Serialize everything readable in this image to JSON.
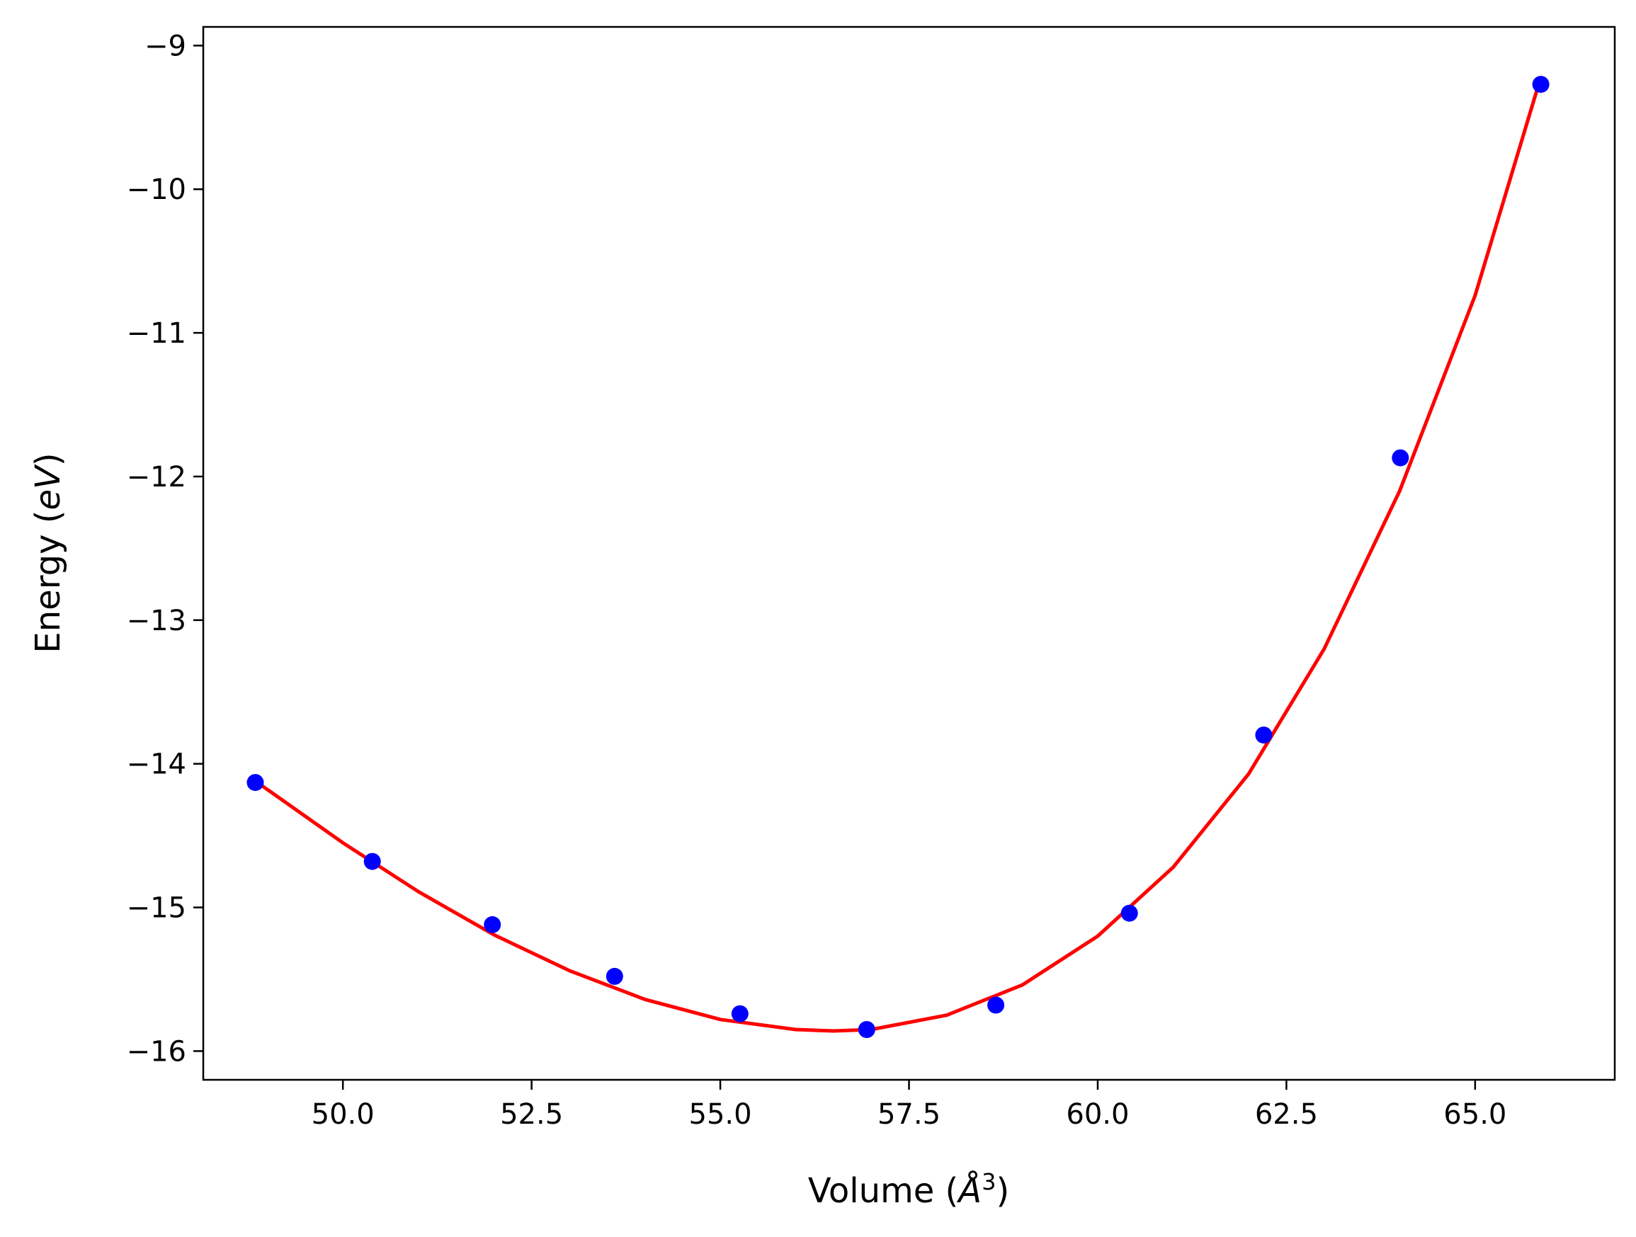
{
  "chart_data": {
    "type": "scatter",
    "xlabel": "Volume ($\\AA^3$)",
    "ylabel": "Energy ($eV$)",
    "xlim": [
      48.15,
      66.85
    ],
    "ylim": [
      -16.2,
      -8.87
    ],
    "xticks": [
      50.0,
      52.5,
      55.0,
      57.5,
      60.0,
      62.5,
      65.0
    ],
    "xtick_labels": [
      "50.0",
      "52.5",
      "55.0",
      "57.5",
      "60.0",
      "62.5",
      "65.0"
    ],
    "yticks": [
      -16,
      -15,
      -14,
      -13,
      -12,
      -11,
      -10,
      -9
    ],
    "ytick_labels": [
      "−16",
      "−15",
      "−14",
      "−13",
      "−12",
      "−11",
      "−10",
      "−9"
    ],
    "grid": false,
    "series": [
      {
        "kind": "points",
        "color": "#0000ff",
        "x": [
          48.84,
          50.39,
          51.98,
          53.6,
          55.26,
          56.94,
          58.65,
          60.42,
          62.2,
          64.01,
          65.87
        ],
        "y": [
          -14.13,
          -14.68,
          -15.12,
          -15.48,
          -15.74,
          -15.85,
          -15.68,
          -15.04,
          -13.8,
          -11.87,
          -9.27
        ]
      },
      {
        "kind": "fit-line",
        "color": "#ff0000",
        "x": [
          48.84,
          50.0,
          51.0,
          52.0,
          53.0,
          54.0,
          55.0,
          56.0,
          56.5,
          57.0,
          58.0,
          59.0,
          60.0,
          61.0,
          62.0,
          63.0,
          64.0,
          65.0,
          65.87
        ],
        "y": [
          -14.12,
          -14.55,
          -14.89,
          -15.19,
          -15.44,
          -15.64,
          -15.78,
          -15.85,
          -15.86,
          -15.85,
          -15.75,
          -15.54,
          -15.2,
          -14.72,
          -14.07,
          -13.2,
          -12.1,
          -10.74,
          -9.22
        ]
      }
    ]
  }
}
